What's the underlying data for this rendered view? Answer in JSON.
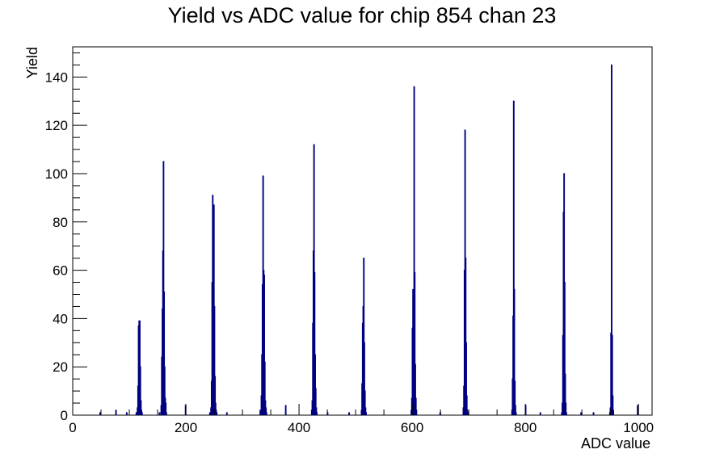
{
  "chart_data": {
    "type": "bar",
    "title": "Yield vs ADC value for chip 854 chan 23",
    "xlabel": "ADC value",
    "ylabel": "Yield",
    "xlim": [
      0,
      1024
    ],
    "ylim": [
      0,
      152.5
    ],
    "xticks": [
      0,
      200,
      400,
      600,
      800,
      1000
    ],
    "yticks": [
      0,
      20,
      40,
      60,
      80,
      100,
      120,
      140
    ],
    "grid": false,
    "legend": "none",
    "bin_width": 1,
    "series_color": "#000080",
    "bins": [
      {
        "x": 48,
        "y": 1
      },
      {
        "x": 76,
        "y": 2
      },
      {
        "x": 95,
        "y": 1
      },
      {
        "x": 112,
        "y": 1
      },
      {
        "x": 114,
        "y": 3
      },
      {
        "x": 115,
        "y": 12
      },
      {
        "x": 116,
        "y": 37
      },
      {
        "x": 117,
        "y": 39
      },
      {
        "x": 118,
        "y": 39
      },
      {
        "x": 119,
        "y": 20
      },
      {
        "x": 120,
        "y": 6
      },
      {
        "x": 121,
        "y": 2
      },
      {
        "x": 122,
        "y": 1
      },
      {
        "x": 153,
        "y": 1
      },
      {
        "x": 156,
        "y": 4
      },
      {
        "x": 157,
        "y": 24
      },
      {
        "x": 158,
        "y": 44
      },
      {
        "x": 159,
        "y": 68
      },
      {
        "x": 160,
        "y": 105
      },
      {
        "x": 161,
        "y": 51
      },
      {
        "x": 162,
        "y": 20
      },
      {
        "x": 163,
        "y": 7
      },
      {
        "x": 164,
        "y": 5
      },
      {
        "x": 165,
        "y": 1
      },
      {
        "x": 199,
        "y": 4
      },
      {
        "x": 242,
        "y": 1
      },
      {
        "x": 244,
        "y": 3
      },
      {
        "x": 245,
        "y": 14
      },
      {
        "x": 246,
        "y": 55
      },
      {
        "x": 247,
        "y": 91
      },
      {
        "x": 248,
        "y": 82
      },
      {
        "x": 249,
        "y": 87
      },
      {
        "x": 250,
        "y": 45
      },
      {
        "x": 251,
        "y": 16
      },
      {
        "x": 252,
        "y": 5
      },
      {
        "x": 253,
        "y": 2
      },
      {
        "x": 254,
        "y": 1
      },
      {
        "x": 272,
        "y": 1
      },
      {
        "x": 331,
        "y": 2
      },
      {
        "x": 333,
        "y": 8
      },
      {
        "x": 334,
        "y": 25
      },
      {
        "x": 335,
        "y": 54
      },
      {
        "x": 336,
        "y": 99
      },
      {
        "x": 337,
        "y": 60
      },
      {
        "x": 338,
        "y": 58
      },
      {
        "x": 339,
        "y": 22
      },
      {
        "x": 340,
        "y": 6
      },
      {
        "x": 341,
        "y": 3
      },
      {
        "x": 342,
        "y": 1
      },
      {
        "x": 376,
        "y": 4
      },
      {
        "x": 422,
        "y": 2
      },
      {
        "x": 423,
        "y": 6
      },
      {
        "x": 424,
        "y": 38
      },
      {
        "x": 425,
        "y": 68
      },
      {
        "x": 426,
        "y": 112
      },
      {
        "x": 427,
        "y": 59
      },
      {
        "x": 428,
        "y": 25
      },
      {
        "x": 429,
        "y": 11
      },
      {
        "x": 430,
        "y": 3
      },
      {
        "x": 431,
        "y": 1
      },
      {
        "x": 450,
        "y": 1
      },
      {
        "x": 488,
        "y": 1
      },
      {
        "x": 510,
        "y": 2
      },
      {
        "x": 511,
        "y": 13
      },
      {
        "x": 512,
        "y": 38
      },
      {
        "x": 513,
        "y": 45
      },
      {
        "x": 514,
        "y": 65
      },
      {
        "x": 515,
        "y": 30
      },
      {
        "x": 516,
        "y": 10
      },
      {
        "x": 517,
        "y": 3
      },
      {
        "x": 518,
        "y": 1
      },
      {
        "x": 598,
        "y": 2
      },
      {
        "x": 599,
        "y": 7
      },
      {
        "x": 600,
        "y": 36
      },
      {
        "x": 601,
        "y": 52
      },
      {
        "x": 602,
        "y": 22
      },
      {
        "x": 603,
        "y": 136
      },
      {
        "x": 604,
        "y": 59
      },
      {
        "x": 605,
        "y": 21
      },
      {
        "x": 606,
        "y": 7
      },
      {
        "x": 607,
        "y": 2
      },
      {
        "x": 649,
        "y": 1
      },
      {
        "x": 690,
        "y": 3
      },
      {
        "x": 691,
        "y": 12
      },
      {
        "x": 692,
        "y": 60
      },
      {
        "x": 693,
        "y": 118
      },
      {
        "x": 694,
        "y": 65
      },
      {
        "x": 695,
        "y": 30
      },
      {
        "x": 696,
        "y": 8
      },
      {
        "x": 697,
        "y": 2
      },
      {
        "x": 698,
        "y": 1
      },
      {
        "x": 776,
        "y": 2
      },
      {
        "x": 777,
        "y": 15
      },
      {
        "x": 778,
        "y": 41
      },
      {
        "x": 779,
        "y": 130
      },
      {
        "x": 780,
        "y": 52
      },
      {
        "x": 781,
        "y": 14
      },
      {
        "x": 782,
        "y": 4
      },
      {
        "x": 783,
        "y": 1
      },
      {
        "x": 800,
        "y": 4
      },
      {
        "x": 826,
        "y": 1
      },
      {
        "x": 864,
        "y": 1
      },
      {
        "x": 865,
        "y": 5
      },
      {
        "x": 866,
        "y": 33
      },
      {
        "x": 867,
        "y": 84
      },
      {
        "x": 868,
        "y": 100
      },
      {
        "x": 869,
        "y": 55
      },
      {
        "x": 870,
        "y": 17
      },
      {
        "x": 871,
        "y": 5
      },
      {
        "x": 872,
        "y": 1
      },
      {
        "x": 898,
        "y": 1
      },
      {
        "x": 920,
        "y": 1
      },
      {
        "x": 949,
        "y": 1
      },
      {
        "x": 950,
        "y": 3
      },
      {
        "x": 951,
        "y": 34
      },
      {
        "x": 952,
        "y": 145
      },
      {
        "x": 953,
        "y": 33
      },
      {
        "x": 954,
        "y": 8
      },
      {
        "x": 955,
        "y": 2
      },
      {
        "x": 998,
        "y": 4
      }
    ]
  }
}
